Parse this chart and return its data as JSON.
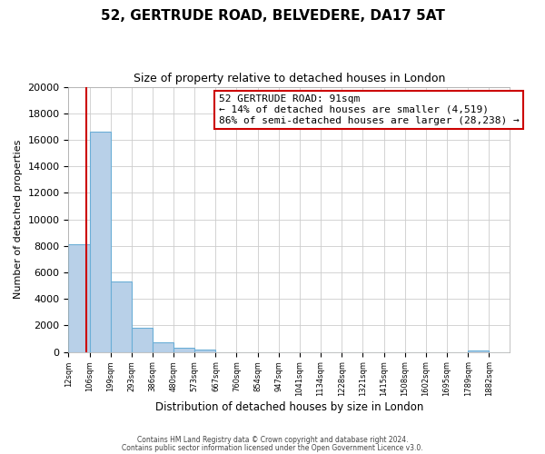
{
  "title": "52, GERTRUDE ROAD, BELVEDERE, DA17 5AT",
  "subtitle": "Size of property relative to detached houses in London",
  "xlabel": "Distribution of detached houses by size in London",
  "ylabel": "Number of detached properties",
  "bin_labels": [
    "12sqm",
    "106sqm",
    "199sqm",
    "293sqm",
    "386sqm",
    "480sqm",
    "573sqm",
    "667sqm",
    "760sqm",
    "854sqm",
    "947sqm",
    "1041sqm",
    "1134sqm",
    "1228sqm",
    "1321sqm",
    "1415sqm",
    "1508sqm",
    "1602sqm",
    "1695sqm",
    "1789sqm",
    "1882sqm"
  ],
  "bar_heights": [
    8100,
    16600,
    5300,
    1800,
    700,
    300,
    150,
    0,
    0,
    0,
    0,
    0,
    0,
    0,
    0,
    0,
    0,
    0,
    0,
    100,
    0
  ],
  "bar_color": "#b8d0e8",
  "bar_edge_color": "#6baed6",
  "property_line_x": 91,
  "bin_edges": [
    12,
    106,
    199,
    293,
    386,
    480,
    573,
    667,
    760,
    854,
    947,
    1041,
    1134,
    1228,
    1321,
    1415,
    1508,
    1602,
    1695,
    1789,
    1882,
    1975
  ],
  "ylim": [
    0,
    20000
  ],
  "yticks": [
    0,
    2000,
    4000,
    6000,
    8000,
    10000,
    12000,
    14000,
    16000,
    18000,
    20000
  ],
  "annotation_title": "52 GERTRUDE ROAD: 91sqm",
  "annotation_line1": "← 14% of detached houses are smaller (4,519)",
  "annotation_line2": "86% of semi-detached houses are larger (28,238) →",
  "annotation_box_facecolor": "#ffffff",
  "annotation_box_edgecolor": "#cc0000",
  "vline_color": "#cc0000",
  "grid_color": "#cccccc",
  "footer1": "Contains HM Land Registry data © Crown copyright and database right 2024.",
  "footer2": "Contains public sector information licensed under the Open Government Licence v3.0.",
  "bg_color": "#ffffff",
  "plot_bg_color": "#ffffff",
  "title_fontsize": 11,
  "subtitle_fontsize": 9
}
